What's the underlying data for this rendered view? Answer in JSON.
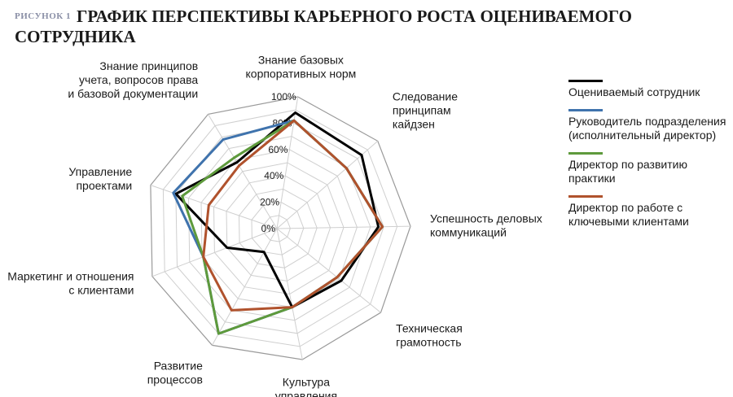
{
  "figure_tag": "РИСУНОК 1",
  "chart_data": {
    "type": "radar",
    "title": "ГРАФИК ПЕРСПЕКТИВЫ КАРЬЕРНОГО РОСТА ОЦЕНИВАЕМОГО СОТРУДНИКА",
    "axes": [
      [
        "Знание базовых",
        "корпоративных норм"
      ],
      [
        "Следование",
        "принципам",
        "кайдзен"
      ],
      [
        "Успешность деловых",
        "коммуникаций"
      ],
      [
        "Техническая",
        "грамотность"
      ],
      [
        "Культура",
        "управления"
      ],
      [
        "Развитие",
        "процессов"
      ],
      [
        "Маркетинг и отношения",
        "с клиентами"
      ],
      [
        "Управление",
        "проектами"
      ],
      [
        "Знание принципов",
        "учета, вопросов права",
        "и базовой документации"
      ]
    ],
    "ticks": [
      "0%",
      "20%",
      "40%",
      "60%",
      "80%",
      "100%"
    ],
    "rlim": [
      0,
      100
    ],
    "grid": true,
    "legend_position": "right",
    "series": [
      {
        "name": "Оцениваемый сотрудник",
        "color": "#000000",
        "values": [
          88,
          84,
          76,
          62,
          60,
          20,
          40,
          80,
          58
        ]
      },
      {
        "name": "Руководитель подразделения (исполнительный директор)",
        "color": "#3f73ad",
        "values": [
          82,
          69,
          79,
          58,
          60,
          90,
          59,
          82,
          78
        ]
      },
      {
        "name": "Директор по развитию практики",
        "color": "#5e9a3c",
        "values": [
          82,
          69,
          79,
          58,
          60,
          90,
          59,
          75,
          62
        ]
      },
      {
        "name": "Директор по работе с ключевыми клиентами",
        "color": "#b0522d",
        "values": [
          82,
          69,
          79,
          58,
          60,
          70,
          59,
          54,
          55
        ]
      }
    ]
  }
}
